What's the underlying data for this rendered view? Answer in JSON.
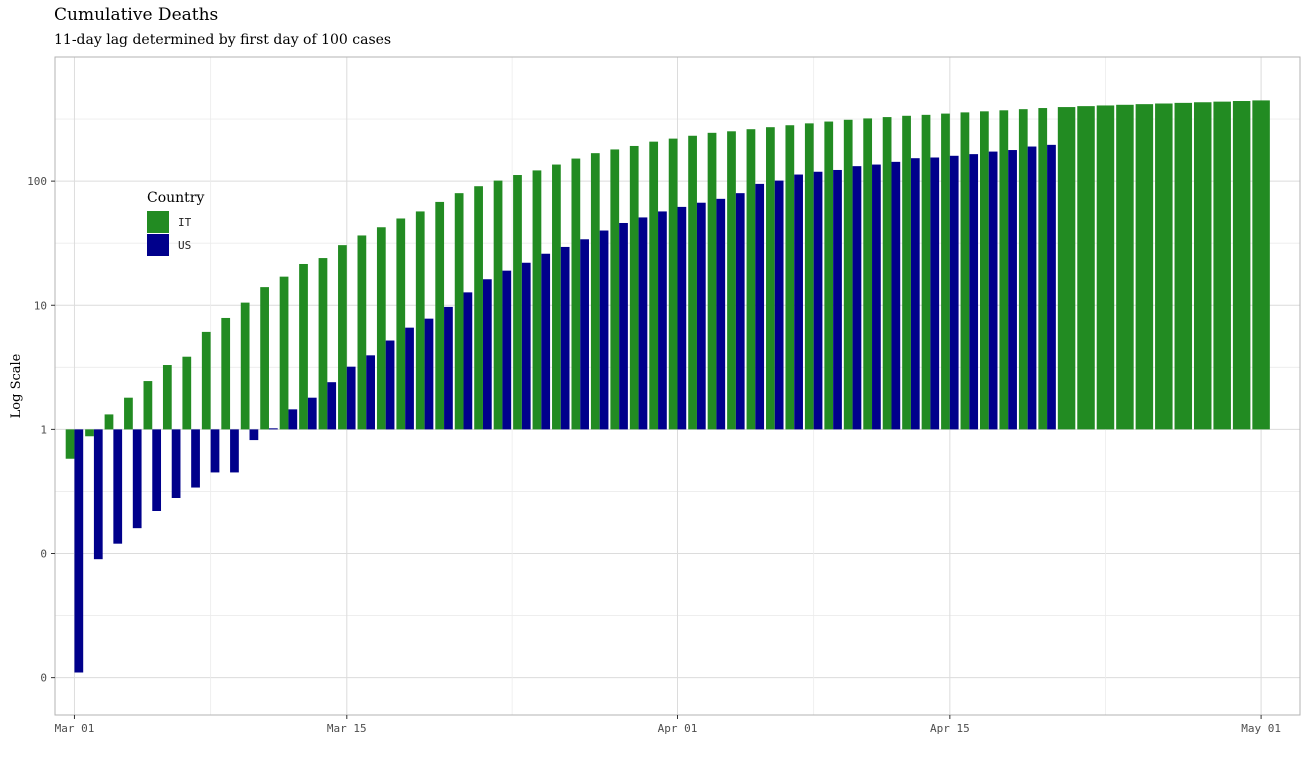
{
  "chart_data": {
    "type": "bar",
    "title": "Cumulative Deaths",
    "subtitle": "11-day lag determined by first day of 100 cases",
    "xlabel": "",
    "ylabel": "Log Scale",
    "y_scale": "log10",
    "ylim": [
      0.005,
      1000
    ],
    "x_range": [
      "2020-02-29",
      "2020-05-03"
    ],
    "x_ticks": [
      {
        "date": "2020-03-01",
        "label": "Mar 01"
      },
      {
        "date": "2020-03-15",
        "label": "Mar 15"
      },
      {
        "date": "2020-04-01",
        "label": "Apr 01"
      },
      {
        "date": "2020-04-15",
        "label": "Apr 15"
      },
      {
        "date": "2020-05-01",
        "label": "May 01"
      }
    ],
    "y_ticks": [
      {
        "value": 0.01,
        "label": "0"
      },
      {
        "value": 0.1,
        "label": "0"
      },
      {
        "value": 1,
        "label": "1"
      },
      {
        "value": 10,
        "label": "10"
      },
      {
        "value": 100,
        "label": "100"
      }
    ],
    "baseline": 1,
    "grid": true,
    "legend": {
      "title": "Country",
      "position": "left"
    },
    "series": [
      {
        "name": "IT",
        "color": "#228B22",
        "start_date": "2020-03-01",
        "values": [
          0.58,
          0.88,
          1.32,
          1.8,
          2.45,
          3.3,
          3.85,
          6.1,
          7.9,
          10.5,
          14,
          17,
          21.5,
          24,
          30.5,
          36.5,
          42.5,
          50,
          57,
          68,
          80,
          91,
          101,
          112,
          122,
          136,
          152,
          168,
          180,
          192,
          208,
          220,
          232,
          245,
          252,
          262,
          272,
          282,
          292,
          302,
          312,
          320,
          328,
          336,
          342,
          350,
          358,
          365,
          372,
          380,
          388,
          395,
          402,
          407,
          412,
          417,
          422,
          427,
          432,
          437,
          442,
          447
        ]
      },
      {
        "name": "US",
        "color": "#00008B",
        "start_date": "2020-03-01",
        "values": [
          0.011,
          0.09,
          0.12,
          0.16,
          0.22,
          0.28,
          0.34,
          0.45,
          0.45,
          0.82,
          1.02,
          1.45,
          1.8,
          2.4,
          3.2,
          3.95,
          5.2,
          6.6,
          7.8,
          9.7,
          12.7,
          16.2,
          19,
          22,
          26,
          29.5,
          34,
          40,
          46,
          51,
          57,
          62,
          67,
          72,
          80,
          95,
          101,
          113,
          119,
          123,
          132,
          136,
          143,
          153,
          155,
          160,
          165,
          173,
          178,
          190,
          196
        ]
      }
    ]
  }
}
